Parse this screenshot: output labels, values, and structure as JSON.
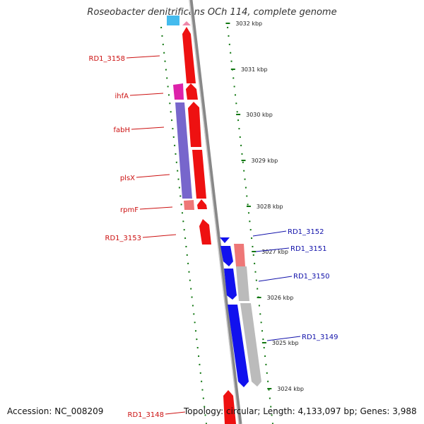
{
  "title": "Roseobacter denitrificans OCh 114, complete genome",
  "accession": "Accession: NC_008209",
  "summary": "Topology: circular; Length: 4,133,097 bp; Genes: 3,988",
  "kbp_marks": [
    "3032 kbp",
    "3031 kbp",
    "3030 kbp",
    "3029 kbp",
    "3028 kbp",
    "3027 kbp",
    "3026 kbp",
    "3025 kbp",
    "3024 kbp"
  ],
  "forward_genes": [
    "RD1_3158",
    "ihfA",
    "fabH",
    "plsX",
    "rpmF",
    "RD1_3153",
    "RD1_3148"
  ],
  "reverse_genes": [
    "RD1_3152",
    "RD1_3151",
    "RD1_3150",
    "RD1_3149"
  ],
  "colors": {
    "forward": "#ee1111",
    "reverse": "#1111ee",
    "magenta": "#dd22aa",
    "purple": "#7766cc",
    "pink": "#ee7777",
    "grey": "#bbbbbb",
    "cyan": "#44bbee",
    "axis": "#888888",
    "dots": "#117711"
  }
}
